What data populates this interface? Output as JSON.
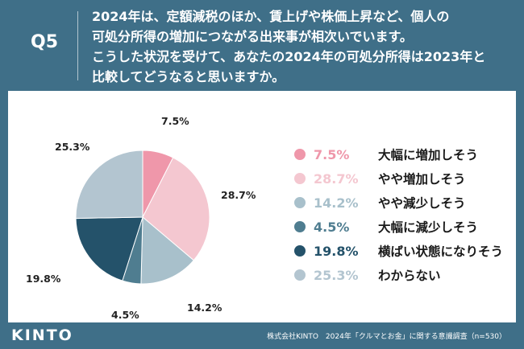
{
  "header": {
    "q_label": "Q5",
    "question_lines": [
      "2024年は、定額減税のほか、賃上げや株価上昇など、個人の",
      "可処分所得の増加につながる出来事が相次いでいます。",
      "こうした状況を受けて、あなたの2024年の可処分所得は2023年と",
      "比較してどうなると思いますか。"
    ]
  },
  "chart_data": {
    "type": "pie",
    "start": "top",
    "direction": "clockwise",
    "slices": [
      {
        "label": "大幅に増加しそう",
        "value": 7.5,
        "display": "7.5%",
        "color": "#ef97aa"
      },
      {
        "label": "やや増加しそう",
        "value": 28.7,
        "display": "28.7%",
        "color": "#f4c7d0"
      },
      {
        "label": "やや減少しそう",
        "value": 14.2,
        "display": "14.2%",
        "color": "#a8c0cb"
      },
      {
        "label": "大幅に減少しそう",
        "value": 4.5,
        "display": "4.5%",
        "color": "#4f7d90"
      },
      {
        "label": "横ばい状態になりそう",
        "value": 19.8,
        "display": "19.8%",
        "color": "#24526a"
      },
      {
        "label": "わからない",
        "value": 25.3,
        "display": "25.3%",
        "color": "#b3c5d0"
      }
    ]
  },
  "footer": {
    "logo": "KINTO",
    "source": "株式会社KINTO　2024年「クルマとお金」に関する意識調査（n=530）"
  }
}
